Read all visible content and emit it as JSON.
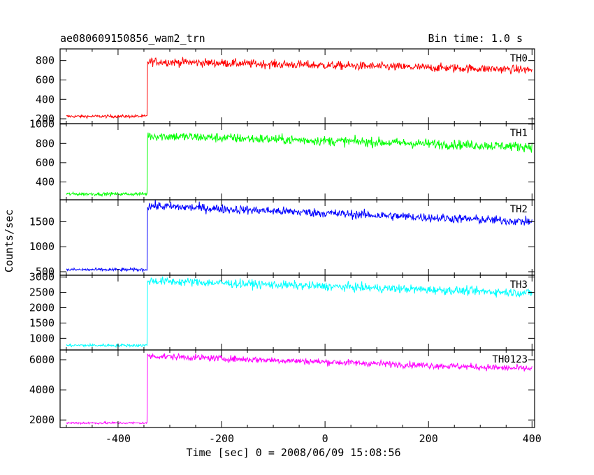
{
  "header": {
    "title": "ae080609150856_wam2_trn",
    "bin_time": "Bin time: 1.0 s"
  },
  "axes": {
    "ylabel": "Counts/sec",
    "xlabel": "Time [sec] 0 = 2008/06/09 15:08:56"
  },
  "chart_data": {
    "type": "line",
    "x_range": [
      -512,
      405
    ],
    "x_ticks": [
      -400,
      -200,
      0,
      200,
      400
    ],
    "step_time": -343,
    "series": [
      {
        "name": "TH0",
        "color": "#ff0000",
        "ylim": [
          150,
          920
        ],
        "yticks": [
          200,
          400,
          600,
          800
        ],
        "pre_level": 225,
        "post_start": 790,
        "post_end": 705,
        "noise": 22
      },
      {
        "name": "TH1",
        "color": "#00ff00",
        "ylim": [
          215,
          1005
        ],
        "yticks": [
          400,
          600,
          800,
          1000
        ],
        "pre_level": 275,
        "post_start": 880,
        "post_end": 765,
        "noise": 25
      },
      {
        "name": "TH2",
        "color": "#0000ff",
        "ylim": [
          430,
          1940
        ],
        "yticks": [
          500,
          1000,
          1500
        ],
        "pre_level": 540,
        "post_start": 1820,
        "post_end": 1500,
        "noise": 45
      },
      {
        "name": "TH3",
        "color": "#00ffff",
        "ylim": [
          620,
          3060
        ],
        "yticks": [
          1000,
          1500,
          2000,
          2500,
          3000
        ],
        "pre_level": 770,
        "post_start": 2880,
        "post_end": 2480,
        "noise": 70
      },
      {
        "name": "TH0123",
        "color": "#ff00ff",
        "ylim": [
          1500,
          6650
        ],
        "yticks": [
          2000,
          4000,
          6000
        ],
        "pre_level": 1800,
        "post_start": 6250,
        "post_end": 5400,
        "noise": 110
      }
    ]
  }
}
